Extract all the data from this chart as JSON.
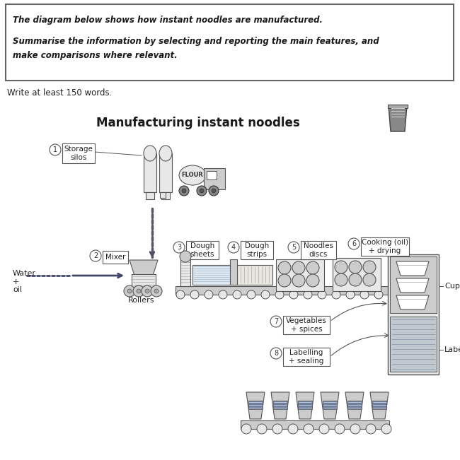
{
  "title": "Manufacturing instant noodles",
  "prompt_line1": "The diagram below shows how instant noodles are manufactured.",
  "prompt_line2": "Summarise the information by selecting and reporting the main features, and",
  "prompt_line3": "make comparisons where relevant.",
  "write_note": "Write at least 150 words.",
  "bg_color": "#ffffff",
  "step_labels": {
    "1": "Storage\nsilos",
    "2": "Mixer",
    "3": "Dough\nsheets",
    "4": "Dough\nstrips",
    "5": "Noodles\ndiscs",
    "6": "Cooking (oil)\n+ drying",
    "7": "Vegetables\n+ spices",
    "8": "Labelling\n+ sealing"
  },
  "extra_labels": {
    "water_oil": "Water\n+\noil",
    "rollers": "Rollers",
    "cups": "Cups",
    "labels": "Labels",
    "flour": "FLOUR"
  },
  "line_color": "#555555",
  "fill_light": "#e8e8e8",
  "fill_mid": "#cccccc",
  "fill_dark": "#aaaaaa"
}
